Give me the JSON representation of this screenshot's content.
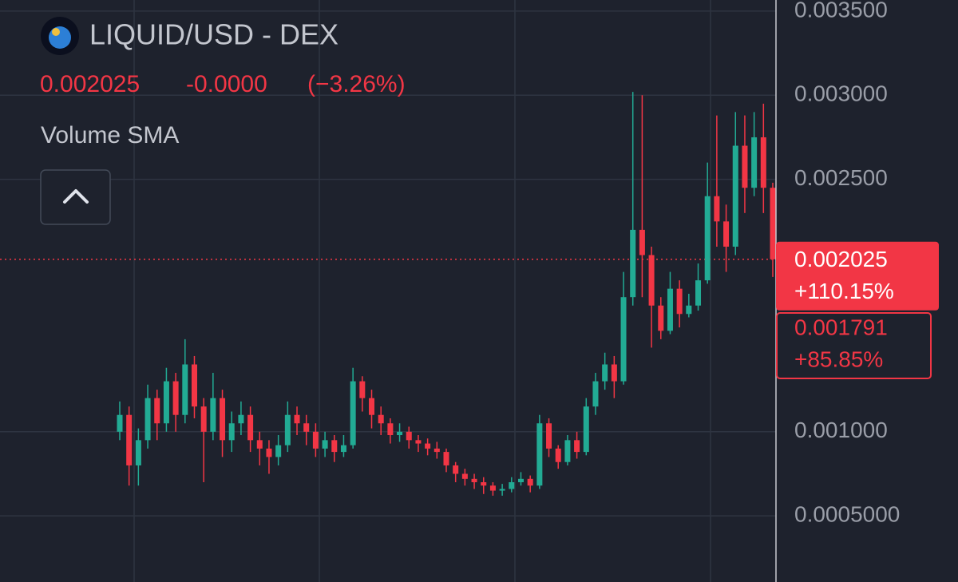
{
  "header": {
    "symbol": "LIQUID/USD - DEX",
    "price": "0.002025",
    "change": "-0.0000",
    "change_pct": "(−3.26%)",
    "indicator": "Volume SMA"
  },
  "chart_data": {
    "type": "candlestick",
    "up_color": "#22ab94",
    "down_color": "#f23645",
    "ylim": [
      0.000107,
      0.003566
    ],
    "yticks": [
      {
        "value": 0.0035,
        "label": "0.003500"
      },
      {
        "value": 0.003,
        "label": "0.003000"
      },
      {
        "value": 0.0025,
        "label": "0.002500"
      },
      {
        "value": 0.001,
        "label": "0.001000"
      },
      {
        "value": 0.0005,
        "label": "0.0005000"
      }
    ],
    "grid": true,
    "price_labels": [
      {
        "value": 0.002025,
        "label": "0.002025",
        "change": "+110.15%"
      },
      {
        "value": 0.001791,
        "label": "0.001791",
        "change": "+85.85%"
      }
    ],
    "open": [
      0.001,
      0.0011,
      0.0008,
      0.00095,
      0.0012,
      0.00105,
      0.0013,
      0.0011,
      0.0014,
      0.00115,
      0.001,
      0.0012,
      0.00095,
      0.00105,
      0.0011,
      0.00095,
      0.0009,
      0.00085,
      0.00092,
      0.0011,
      0.00105,
      0.001,
      0.0009,
      0.00095,
      0.00088,
      0.00092,
      0.0013,
      0.0012,
      0.0011,
      0.00105,
      0.00098,
      0.001,
      0.00095,
      0.00093,
      0.0009,
      0.00088,
      0.0008,
      0.00075,
      0.00072,
      0.0007,
      0.00068,
      0.00065,
      0.00066,
      0.0007,
      0.00072,
      0.00068,
      0.00105,
      0.0009,
      0.00082,
      0.00095,
      0.00088,
      0.00115,
      0.0013,
      0.0014,
      0.0013,
      0.0018,
      0.0022,
      0.00205,
      0.00175,
      0.0016,
      0.00185,
      0.0017,
      0.00175,
      0.0019,
      0.0024,
      0.00225,
      0.0021,
      0.0027,
      0.00245,
      0.00275,
      0.00245
    ],
    "high": [
      0.00118,
      0.00115,
      0.00102,
      0.00128,
      0.00125,
      0.00138,
      0.00135,
      0.00155,
      0.00145,
      0.0012,
      0.00135,
      0.00125,
      0.00112,
      0.00118,
      0.00115,
      0.001,
      0.00095,
      0.00098,
      0.00118,
      0.00115,
      0.0011,
      0.00105,
      0.001,
      0.00098,
      0.00098,
      0.00138,
      0.00133,
      0.00125,
      0.00115,
      0.00108,
      0.00105,
      0.00103,
      0.00098,
      0.00096,
      0.00094,
      0.0009,
      0.00082,
      0.00078,
      0.00075,
      0.00073,
      0.0007,
      0.00069,
      0.00073,
      0.00076,
      0.00074,
      0.0011,
      0.00108,
      0.00092,
      0.00098,
      0.001,
      0.0012,
      0.00135,
      0.00147,
      0.00145,
      0.00195,
      0.00302,
      0.003,
      0.0021,
      0.0018,
      0.00195,
      0.0019,
      0.00182,
      0.002,
      0.0026,
      0.00288,
      0.00235,
      0.0029,
      0.00288,
      0.0029,
      0.00295,
      0.00248
    ],
    "low": [
      0.00095,
      0.00068,
      0.00068,
      0.0009,
      0.00095,
      0.001,
      0.001,
      0.00105,
      0.00108,
      0.0007,
      0.00095,
      0.00085,
      0.00088,
      0.00098,
      0.00088,
      0.0008,
      0.00075,
      0.0008,
      0.00088,
      0.00098,
      0.00092,
      0.00085,
      0.00085,
      0.00082,
      0.00085,
      0.0009,
      0.00112,
      0.00102,
      0.00098,
      0.00093,
      0.00094,
      0.0009,
      0.00088,
      0.00086,
      0.00084,
      0.00076,
      0.0007,
      0.00068,
      0.00066,
      0.00063,
      0.00062,
      0.00062,
      0.00064,
      0.00068,
      0.00064,
      0.00066,
      0.00085,
      0.00078,
      0.0008,
      0.00084,
      0.00086,
      0.0011,
      0.00125,
      0.0012,
      0.00128,
      0.00175,
      0.0018,
      0.0015,
      0.00155,
      0.00158,
      0.00162,
      0.00168,
      0.00172,
      0.00188,
      0.0021,
      0.00195,
      0.00205,
      0.0023,
      0.0024,
      0.0023,
      0.00192
    ],
    "close": [
      0.0011,
      0.0008,
      0.00095,
      0.0012,
      0.00105,
      0.0013,
      0.0011,
      0.0014,
      0.00115,
      0.001,
      0.0012,
      0.00095,
      0.00105,
      0.0011,
      0.00095,
      0.0009,
      0.00085,
      0.00092,
      0.0011,
      0.00105,
      0.001,
      0.0009,
      0.00095,
      0.00088,
      0.00092,
      0.0013,
      0.0012,
      0.0011,
      0.00105,
      0.00098,
      0.001,
      0.00095,
      0.00093,
      0.0009,
      0.00088,
      0.0008,
      0.00075,
      0.00072,
      0.0007,
      0.00068,
      0.00065,
      0.00066,
      0.0007,
      0.00072,
      0.00068,
      0.00105,
      0.0009,
      0.00082,
      0.00095,
      0.00088,
      0.00115,
      0.0013,
      0.0014,
      0.0013,
      0.0018,
      0.0022,
      0.00205,
      0.00175,
      0.0016,
      0.00185,
      0.0017,
      0.00175,
      0.0019,
      0.0024,
      0.00225,
      0.0021,
      0.0027,
      0.00245,
      0.00275,
      0.00245,
      0.002025
    ]
  }
}
